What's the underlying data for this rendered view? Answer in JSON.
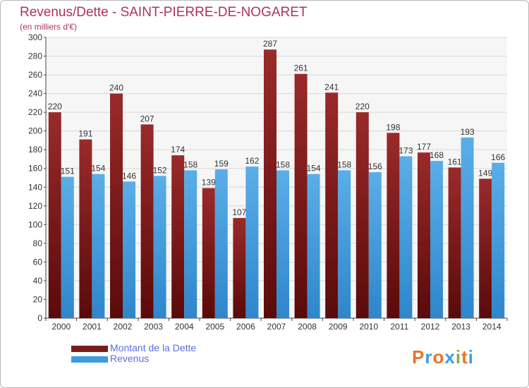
{
  "title": "Revenus/Dette - SAINT-PIERRE-DE-NOGARET",
  "subtitle": "(en milliers d'€)",
  "logo": "Proxiti",
  "colors": {
    "dette": "#7a1c1c",
    "revenus": "#3d9be0",
    "title": "#b03060",
    "legend_text": "#5a6ee0"
  },
  "legend": [
    {
      "label": "Montant de la Dette",
      "color": "#7a1c1c"
    },
    {
      "label": "Revenus",
      "color": "#3d9be0"
    }
  ],
  "chart_data": {
    "type": "bar",
    "title": "Revenus/Dette - SAINT-PIERRE-DE-NOGARET",
    "subtitle": "(en milliers d'€)",
    "categories": [
      "2000",
      "2001",
      "2002",
      "2003",
      "2004",
      "2005",
      "2006",
      "2007",
      "2008",
      "2009",
      "2010",
      "2011",
      "2012",
      "2013",
      "2014"
    ],
    "series": [
      {
        "name": "Montant de la Dette",
        "values": [
          220,
          191,
          240,
          207,
          174,
          139,
          107,
          287,
          261,
          241,
          220,
          198,
          177,
          161,
          149
        ]
      },
      {
        "name": "Revenus",
        "values": [
          151,
          154,
          146,
          152,
          158,
          159,
          162,
          158,
          154,
          158,
          156,
          173,
          168,
          193,
          166
        ]
      }
    ],
    "ylim": [
      0,
      300
    ],
    "yticks": [
      0,
      20,
      40,
      60,
      80,
      100,
      120,
      140,
      160,
      180,
      200,
      220,
      240,
      260,
      280,
      300
    ],
    "grid": true,
    "legend_position": "bottom-left"
  }
}
